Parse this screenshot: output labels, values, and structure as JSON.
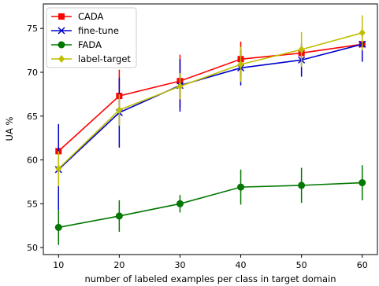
{
  "chart_data": {
    "type": "line",
    "xlabel": "number of labeled examples per class in target domain",
    "ylabel": "UA %",
    "xlim": [
      7.5,
      62.5
    ],
    "ylim": [
      49.2,
      77.8
    ],
    "x_ticks": [
      10,
      20,
      30,
      40,
      50,
      60
    ],
    "y_ticks": [
      50,
      55,
      60,
      65,
      70,
      75
    ],
    "legend_position": "top-left",
    "grid": false,
    "x": [
      10,
      20,
      30,
      40,
      50,
      60
    ],
    "series": [
      {
        "name": "CADA",
        "color": "#ff0000",
        "marker": "square",
        "values": [
          61.0,
          67.3,
          69.0,
          71.5,
          72.2,
          73.2
        ],
        "errors": [
          3.0,
          3.0,
          3.0,
          2.0,
          0.8,
          0.8
        ]
      },
      {
        "name": "fine-tune",
        "color": "#0000cc",
        "marker": "x",
        "values": [
          58.9,
          65.4,
          68.5,
          70.5,
          71.4,
          73.2
        ],
        "errors": [
          5.2,
          4.0,
          3.0,
          2.0,
          1.9,
          2.0
        ]
      },
      {
        "name": "FADA",
        "color": "#007700",
        "marker": "circle",
        "values": [
          52.3,
          53.6,
          55.0,
          56.9,
          57.1,
          57.4
        ],
        "errors": [
          2.0,
          1.8,
          1.0,
          2.0,
          2.0,
          2.0
        ]
      },
      {
        "name": "label-target",
        "color": "#bfbf00",
        "marker": "diamond",
        "values": [
          59.0,
          65.7,
          68.4,
          70.9,
          72.6,
          74.5
        ],
        "errors": [
          2.0,
          1.8,
          1.5,
          2.0,
          2.0,
          2.0
        ]
      }
    ]
  }
}
